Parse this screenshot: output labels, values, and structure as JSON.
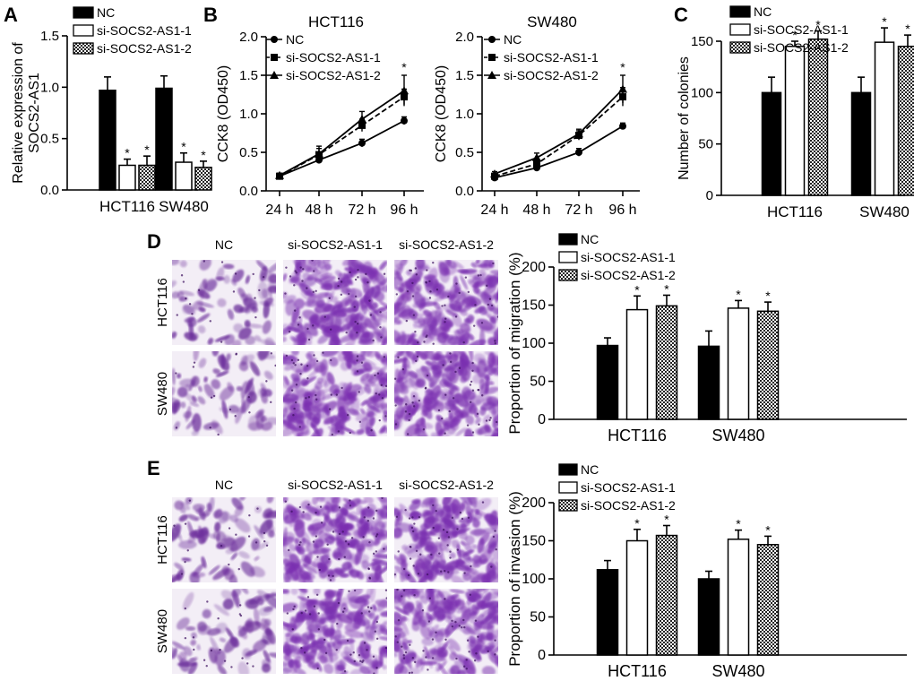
{
  "panels": {
    "A": "A",
    "B": "B",
    "C": "C",
    "D": "D",
    "E": "E"
  },
  "colors": {
    "nc": "#000000",
    "si1": "#ffffff",
    "si2": "checkered-gray",
    "stroke": "#000000"
  },
  "legend": [
    "NC",
    "si-SOCS2-AS1-1",
    "si-SOCS2-AS1-2"
  ],
  "micro": {
    "columns": [
      "NC",
      "si-SOCS2-AS1-1",
      "si-SOCS2-AS1-2"
    ],
    "rows": [
      "HCT116",
      "SW480"
    ]
  },
  "chart_data": [
    {
      "id": "A",
      "type": "bar",
      "categories": [
        "HCT116",
        "SW480"
      ],
      "ylabel": "Relative expression of\nSOCS2-AS1",
      "ylim": [
        0,
        1.5
      ],
      "yticks": [
        0.0,
        0.5,
        1.0,
        1.5
      ],
      "ytick_labels": [
        "0.0",
        "0.5",
        "1.0",
        "1.5"
      ],
      "series": [
        {
          "name": "NC",
          "values": [
            0.97,
            0.99
          ],
          "errors": [
            0.13,
            0.12
          ],
          "star": [
            false,
            false
          ]
        },
        {
          "name": "si-SOCS2-AS1-1",
          "values": [
            0.24,
            0.27
          ],
          "errors": [
            0.06,
            0.09
          ],
          "star": [
            true,
            true
          ]
        },
        {
          "name": "si-SOCS2-AS1-2",
          "values": [
            0.24,
            0.22
          ],
          "errors": [
            0.09,
            0.06
          ],
          "star": [
            true,
            true
          ]
        }
      ]
    },
    {
      "id": "B1",
      "type": "line",
      "title": "HCT116",
      "x": [
        "24 h",
        "48 h",
        "72 h",
        "96 h"
      ],
      "ylabel": "CCK8 (OD450)",
      "ylim": [
        0,
        2.0
      ],
      "yticks": [
        0.0,
        0.5,
        1.0,
        1.5,
        2.0
      ],
      "ytick_labels": [
        "0.0",
        "0.5",
        "1.0",
        "1.5",
        "2.0"
      ],
      "star_label": "*",
      "star_index": 3,
      "series": [
        {
          "name": "NC",
          "marker": "circle",
          "dash": "solid",
          "values": [
            0.19,
            0.4,
            0.62,
            0.91
          ],
          "errors": [
            0.03,
            0.04,
            0.05,
            0.05
          ]
        },
        {
          "name": "si-SOCS2-AS1-1",
          "marker": "square",
          "dash": "dashed",
          "values": [
            0.19,
            0.47,
            0.85,
            1.22
          ],
          "errors": [
            0.03,
            0.08,
            0.08,
            0.1
          ]
        },
        {
          "name": "si-SOCS2-AS1-2",
          "marker": "triangle",
          "dash": "solid",
          "values": [
            0.2,
            0.48,
            0.93,
            1.3
          ],
          "errors": [
            0.03,
            0.1,
            0.1,
            0.2
          ]
        }
      ]
    },
    {
      "id": "B2",
      "type": "line",
      "title": "SW480",
      "x": [
        "24 h",
        "48 h",
        "72 h",
        "96 h"
      ],
      "ylabel": "CCK8 (OD450)",
      "ylim": [
        0,
        2.0
      ],
      "yticks": [
        0.0,
        0.5,
        1.0,
        1.5,
        2.0
      ],
      "ytick_labels": [
        "0.0",
        "0.5",
        "1.0",
        "1.5",
        "2.0"
      ],
      "star_label": "*",
      "star_index": 3,
      "series": [
        {
          "name": "NC",
          "marker": "circle",
          "dash": "solid",
          "values": [
            0.17,
            0.3,
            0.5,
            0.84
          ],
          "errors": [
            0.02,
            0.04,
            0.05,
            0.04
          ]
        },
        {
          "name": "si-SOCS2-AS1-1",
          "marker": "square",
          "dash": "dashed",
          "values": [
            0.19,
            0.35,
            0.72,
            1.22
          ],
          "errors": [
            0.03,
            0.06,
            0.06,
            0.12
          ]
        },
        {
          "name": "si-SOCS2-AS1-2",
          "marker": "triangle",
          "dash": "solid",
          "values": [
            0.22,
            0.43,
            0.74,
            1.32
          ],
          "errors": [
            0.03,
            0.06,
            0.06,
            0.18
          ]
        }
      ]
    },
    {
      "id": "C",
      "type": "bar",
      "categories": [
        "HCT116",
        "SW480"
      ],
      "ylabel": "Number of colonies",
      "ylim": [
        0,
        150
      ],
      "yticks": [
        0,
        50,
        100,
        150
      ],
      "ytick_labels": [
        "0",
        "50",
        "100",
        "150"
      ],
      "series": [
        {
          "name": "NC",
          "values": [
            100,
            100
          ],
          "errors": [
            15,
            15
          ],
          "star": [
            false,
            false
          ]
        },
        {
          "name": "si-SOCS2-AS1-1",
          "values": [
            145,
            149
          ],
          "errors": [
            5,
            14
          ],
          "star": [
            true,
            true
          ]
        },
        {
          "name": "si-SOCS2-AS1-2",
          "values": [
            152,
            145
          ],
          "errors": [
            8,
            11
          ],
          "star": [
            true,
            true
          ]
        }
      ]
    },
    {
      "id": "D",
      "type": "bar",
      "categories": [
        "HCT116",
        "SW480"
      ],
      "ylabel": "Proportion of migration (%)",
      "ylim": [
        0,
        200
      ],
      "yticks": [
        0,
        50,
        100,
        150,
        200
      ],
      "ytick_labels": [
        "0",
        "50",
        "100",
        "150",
        "200"
      ],
      "series": [
        {
          "name": "NC",
          "values": [
            97,
            96
          ],
          "errors": [
            10,
            20
          ],
          "star": [
            false,
            false
          ]
        },
        {
          "name": "si-SOCS2-AS1-1",
          "values": [
            144,
            146
          ],
          "errors": [
            18,
            10
          ],
          "star": [
            true,
            true
          ]
        },
        {
          "name": "si-SOCS2-AS1-2",
          "values": [
            149,
            142
          ],
          "errors": [
            14,
            12
          ],
          "star": [
            true,
            true
          ]
        }
      ]
    },
    {
      "id": "E",
      "type": "bar",
      "categories": [
        "HCT116",
        "SW480"
      ],
      "ylabel": "Proportion of invasion (%)",
      "ylim": [
        0,
        200
      ],
      "yticks": [
        0,
        50,
        100,
        150,
        200
      ],
      "ytick_labels": [
        "0",
        "50",
        "100",
        "150",
        "200"
      ],
      "series": [
        {
          "name": "NC",
          "values": [
            112,
            100
          ],
          "errors": [
            12,
            10
          ],
          "star": [
            false,
            false
          ]
        },
        {
          "name": "si-SOCS2-AS1-1",
          "values": [
            150,
            152
          ],
          "errors": [
            15,
            12
          ],
          "star": [
            true,
            true
          ]
        },
        {
          "name": "si-SOCS2-AS1-2",
          "values": [
            157,
            145
          ],
          "errors": [
            13,
            11
          ],
          "star": [
            true,
            true
          ]
        }
      ]
    }
  ]
}
